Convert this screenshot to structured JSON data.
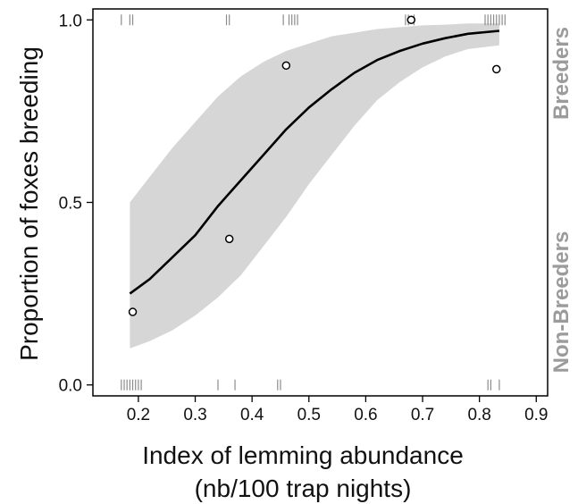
{
  "chart_data": {
    "type": "line",
    "xlabel_line1": "Index of lemming abundance",
    "xlabel_line2": "(nb/100 trap nights)",
    "ylabel": "Proportion of foxes breeding",
    "xlim": [
      0.12,
      0.92
    ],
    "ylim": [
      -0.03,
      1.03
    ],
    "xticks": [
      0.2,
      0.3,
      0.4,
      0.5,
      0.6,
      0.7,
      0.8,
      0.9
    ],
    "yticks": [
      0.0,
      0.5,
      1.0
    ],
    "xtick_labels": [
      "0.2",
      "0.3",
      "0.4",
      "0.5",
      "0.6",
      "0.7",
      "0.8",
      "0.9"
    ],
    "ytick_labels": [
      "0.0",
      "0.5",
      "1.0"
    ],
    "right_labels": {
      "top": "Breeders",
      "bottom": "Non-Breeders"
    },
    "grid": false,
    "colors": {
      "fit_line": "#000000",
      "confidence_band": "#d6d6d6",
      "rug": "#8c8c8c",
      "points_fill": "#ffffff",
      "points_stroke": "#000000"
    },
    "fit_curve": {
      "x": [
        0.185,
        0.22,
        0.26,
        0.3,
        0.34,
        0.38,
        0.42,
        0.46,
        0.5,
        0.54,
        0.58,
        0.62,
        0.66,
        0.7,
        0.74,
        0.78,
        0.835
      ],
      "y": [
        0.25,
        0.29,
        0.35,
        0.41,
        0.49,
        0.56,
        0.63,
        0.7,
        0.76,
        0.81,
        0.855,
        0.89,
        0.915,
        0.935,
        0.95,
        0.962,
        0.97
      ]
    },
    "confidence_band": {
      "x": [
        0.185,
        0.22,
        0.26,
        0.3,
        0.34,
        0.38,
        0.42,
        0.46,
        0.5,
        0.54,
        0.58,
        0.62,
        0.66,
        0.7,
        0.74,
        0.78,
        0.835
      ],
      "lower": [
        0.1,
        0.12,
        0.15,
        0.19,
        0.24,
        0.3,
        0.38,
        0.46,
        0.55,
        0.63,
        0.71,
        0.78,
        0.83,
        0.87,
        0.9,
        0.92,
        0.93
      ],
      "upper": [
        0.5,
        0.57,
        0.65,
        0.72,
        0.79,
        0.845,
        0.885,
        0.915,
        0.935,
        0.955,
        0.965,
        0.975,
        0.98,
        0.985,
        0.987,
        0.99,
        0.99
      ]
    },
    "observed_points": {
      "x": [
        0.19,
        0.36,
        0.46,
        0.68,
        0.83
      ],
      "y": [
        0.2,
        0.4,
        0.875,
        1.0,
        0.865
      ]
    },
    "rug_breeders_x": [
      0.17,
      0.185,
      0.19,
      0.355,
      0.36,
      0.455,
      0.465,
      0.47,
      0.475,
      0.48,
      0.67,
      0.675,
      0.685,
      0.81,
      0.815,
      0.82,
      0.825,
      0.83,
      0.835,
      0.84,
      0.845
    ],
    "rug_nonbreeders_x": [
      0.17,
      0.175,
      0.18,
      0.185,
      0.19,
      0.195,
      0.2,
      0.205,
      0.34,
      0.37,
      0.445,
      0.45,
      0.815,
      0.82,
      0.835
    ]
  }
}
